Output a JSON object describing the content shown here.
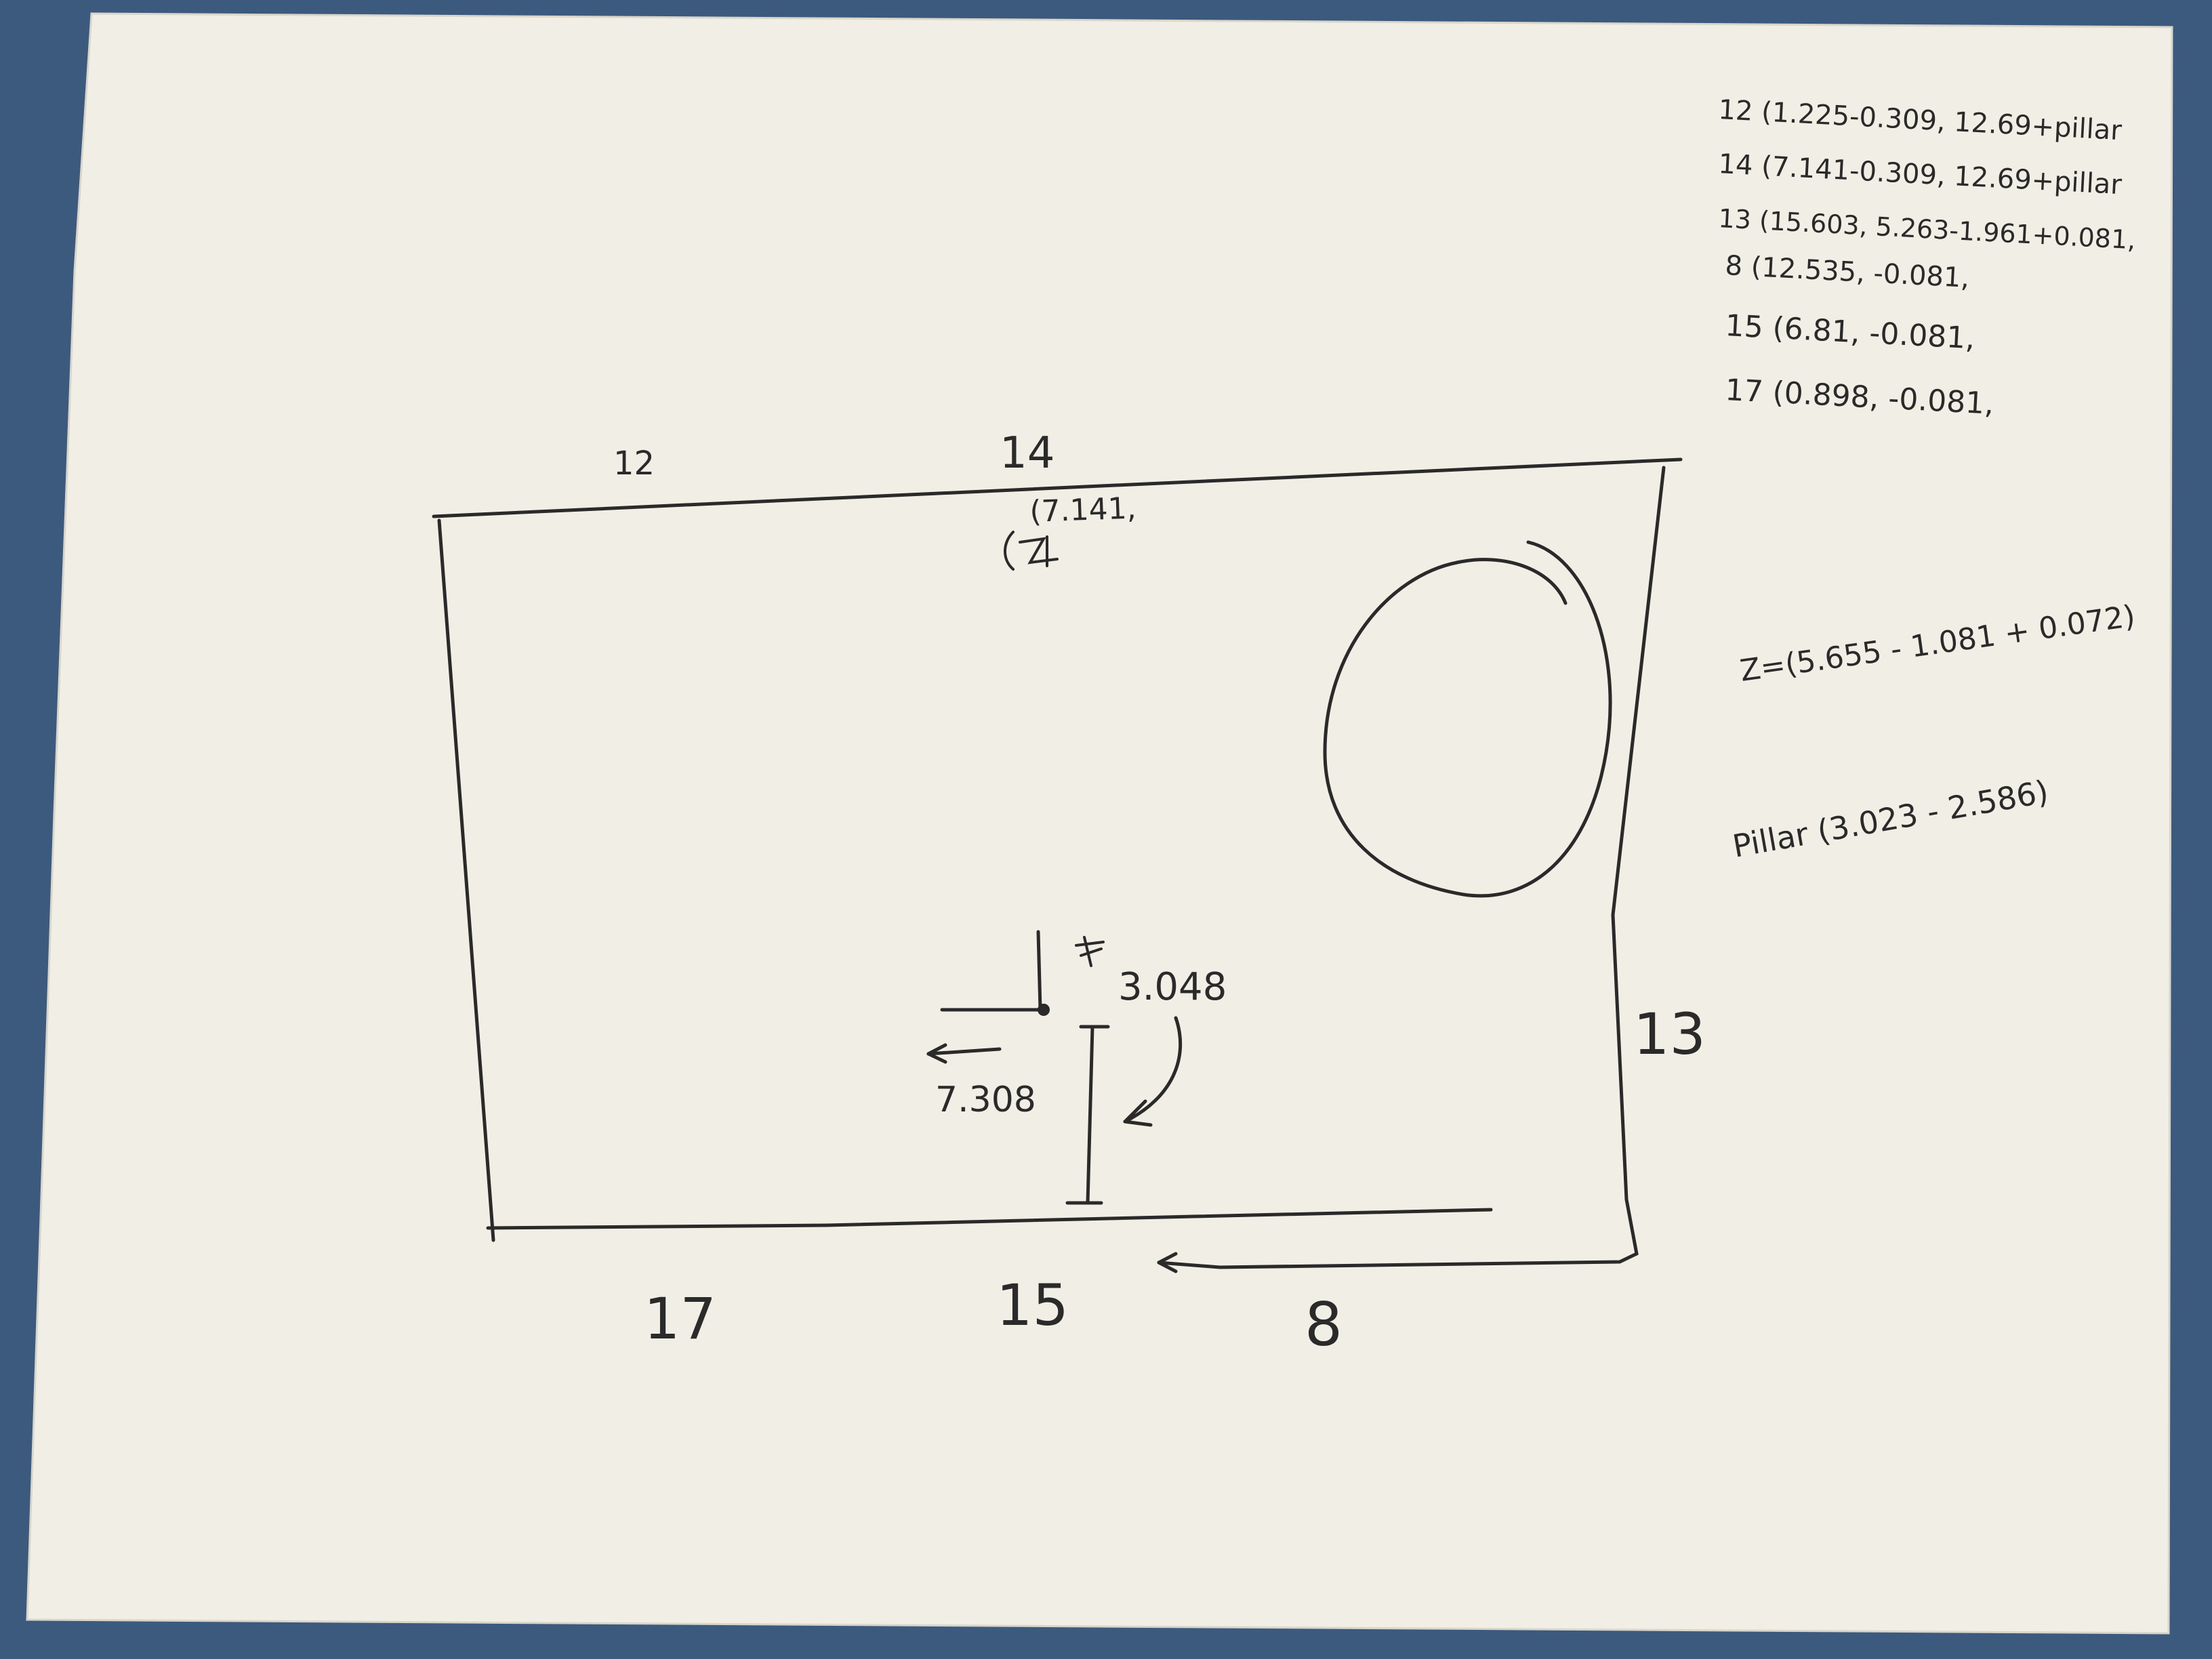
{
  "background_color": "#3c5a7d",
  "paper_color": "#f1eee5",
  "ink_color": "#2a2a2a",
  "labels": {
    "top_left": "12",
    "top_mid": "14",
    "top_mid_coord": "(7.141,",
    "right": "13",
    "bottom_left": "17",
    "bottom_mid": "15",
    "bottom_right": "8",
    "dim_vertical": "3.048",
    "dim_horizontal": "7.308"
  },
  "coords": [
    "12 (1.225-0.309, 12.69+pillar",
    "14 (7.141-0.309, 12.69+pillar",
    "13 (15.603, 5.263-1.961+0.081,",
    "8 (12.535, -0.081,",
    "15 (6.81, -0.081,",
    "17 (0.898, -0.081,"
  ],
  "formulas": {
    "z": "Z=(5.655 - 1.081 + 0.072)",
    "pillar": "Pillar (3.023 - 2.586)"
  }
}
